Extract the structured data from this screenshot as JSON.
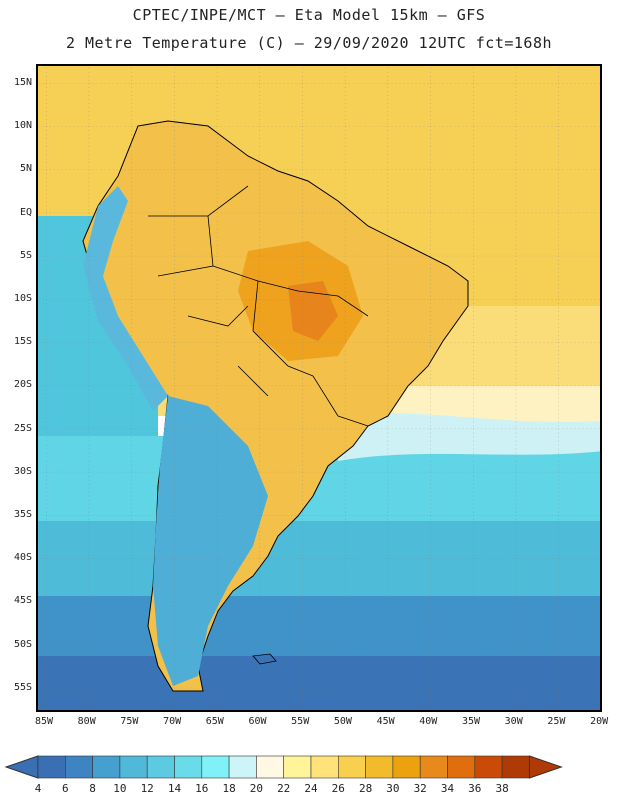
{
  "title_line1": "CPTEC/INPE/MCT –  Eta Model 15km – GFS",
  "title_line2": "2 Metre Temperature (C) – 29/09/2020 12UTC fct=168h",
  "latitude_labels": [
    "15N",
    "10N",
    "5N",
    "EQ",
    "5S",
    "10S",
    "15S",
    "20S",
    "25S",
    "30S",
    "35S",
    "40S",
    "45S",
    "50S",
    "55S"
  ],
  "longitude_labels": [
    "85W",
    "80W",
    "75W",
    "70W",
    "65W",
    "60W",
    "55W",
    "50W",
    "45W",
    "40W",
    "35W",
    "30W",
    "25W",
    "20W"
  ],
  "colorbar": {
    "levels": [
      "4",
      "6",
      "8",
      "10",
      "12",
      "14",
      "16",
      "18",
      "20",
      "22",
      "24",
      "26",
      "28",
      "30",
      "32",
      "34",
      "36",
      "38"
    ],
    "colors": [
      "#3a6fb3",
      "#3d84c2",
      "#46a0cf",
      "#50b8d9",
      "#5ccbe2",
      "#6adbe9",
      "#7ff1f7",
      "#cdf5f7",
      "#fff8e4",
      "#fff49a",
      "#ffe27a",
      "#f8cf4f",
      "#f1bb2c",
      "#eca10f",
      "#e8891c",
      "#e06d0e",
      "#c94b07",
      "#b03a05"
    ]
  }
}
